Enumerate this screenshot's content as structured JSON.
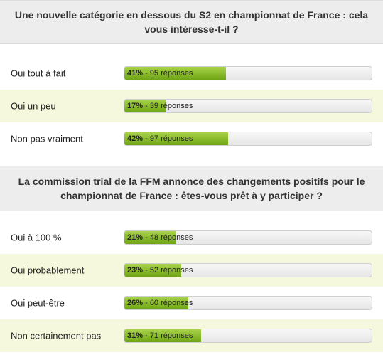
{
  "polls": [
    {
      "question": "Une nouvelle catégorie en dessous du S2 en championnat de France : cela vous intéresse-t-il ?",
      "options": [
        {
          "label": "Oui tout à fait",
          "percent_label": "41%",
          "count_label": "95 réponses",
          "fraction": 0.41
        },
        {
          "label": "Oui un peu",
          "percent_label": "17%",
          "count_label": "39 réponses",
          "fraction": 0.17
        },
        {
          "label": "Non pas vraiment",
          "percent_label": "42%",
          "count_label": "97 réponses",
          "fraction": 0.42
        }
      ]
    },
    {
      "question": "La commission trial de la FFM annonce des changements positifs pour le championnat de France : êtes-vous prêt à y participer ?",
      "options": [
        {
          "label": "Oui à 100 %",
          "percent_label": "21%",
          "count_label": "48 réponses",
          "fraction": 0.21
        },
        {
          "label": "Oui probablement",
          "percent_label": "23%",
          "count_label": "52 réponses",
          "fraction": 0.23
        },
        {
          "label": "Oui peut-être",
          "percent_label": "26%",
          "count_label": "60 réponses",
          "fraction": 0.26
        },
        {
          "label": "Non certainement pas",
          "percent_label": "31%",
          "count_label": "71 réponses",
          "fraction": 0.31
        }
      ]
    }
  ],
  "colors": {
    "bar_fill_top": "#a9d34a",
    "bar_fill_bottom": "#6ea513",
    "alt_row_bg": "#f5f8dc",
    "header_bg": "#ededed"
  }
}
